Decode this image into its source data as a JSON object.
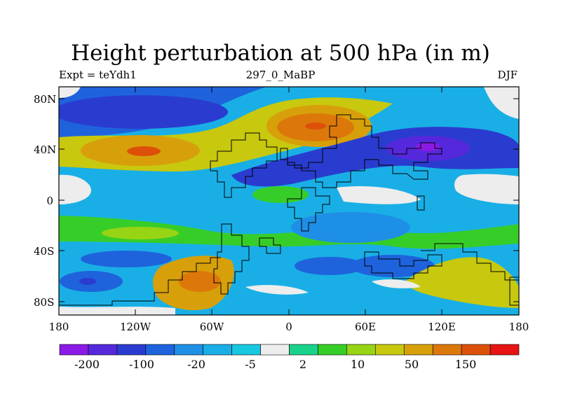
{
  "title": "Height perturbation at 500 hPa (in m)",
  "subtitle_left": "Expt = teYdh1",
  "subtitle_center": "297_0_MaBP",
  "subtitle_right": "DJF",
  "lat_labels": [
    "80N",
    "40N",
    "0",
    "40S",
    "80S"
  ],
  "lon_labels": [
    "180",
    "120W",
    "60W",
    "0",
    "60E",
    "120E",
    "180"
  ],
  "colorbar": {
    "labels": [
      "-200",
      "-100",
      "-20",
      "-5",
      "2",
      "10",
      "50",
      "150"
    ],
    "colors": [
      "#8b1ae6",
      "#5528dc",
      "#2a3ccf",
      "#1e63dc",
      "#1e8fe6",
      "#19afe6",
      "#18c8e0",
      "#ededed",
      "#19d28a",
      "#37cd28",
      "#96d414",
      "#c8c80f",
      "#d7a00a",
      "#dc780a",
      "#dc500a",
      "#e61414"
    ]
  },
  "colors": {
    "land_outline": "#000000",
    "background": "#ffffff"
  }
}
